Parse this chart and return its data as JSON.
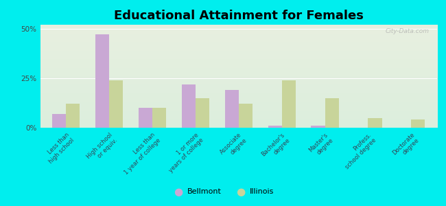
{
  "title": "Educational Attainment for Females",
  "categories": [
    "Less than\nhigh school",
    "High school\nor equiv.",
    "Less than\n1 year of college",
    "1 or more\nyears of college",
    "Associate\ndegree",
    "Bachelor's\ndegree",
    "Master's\ndegree",
    "Profess.\nschool degree",
    "Doctorate\ndegree"
  ],
  "bellmont_values": [
    7,
    47,
    10,
    22,
    19,
    1,
    1,
    0,
    0
  ],
  "illinois_values": [
    12,
    24,
    10,
    15,
    12,
    24,
    15,
    5,
    4
  ],
  "bellmont_color": "#c9a8d4",
  "illinois_color": "#c8d49a",
  "background_color": "#00eeee",
  "plot_bg_gradient_top": "#e8f0e0",
  "plot_bg_gradient_bottom": "#dceedd",
  "ylabel_ticks": [
    "0%",
    "25%",
    "50%"
  ],
  "yticks": [
    0,
    25,
    50
  ],
  "ylim": [
    0,
    52
  ],
  "bar_width": 0.32,
  "watermark": "City-Data.com",
  "legend_labels": [
    "Bellmont",
    "Illinois"
  ],
  "title_fontsize": 13,
  "tick_fontsize": 6.0
}
